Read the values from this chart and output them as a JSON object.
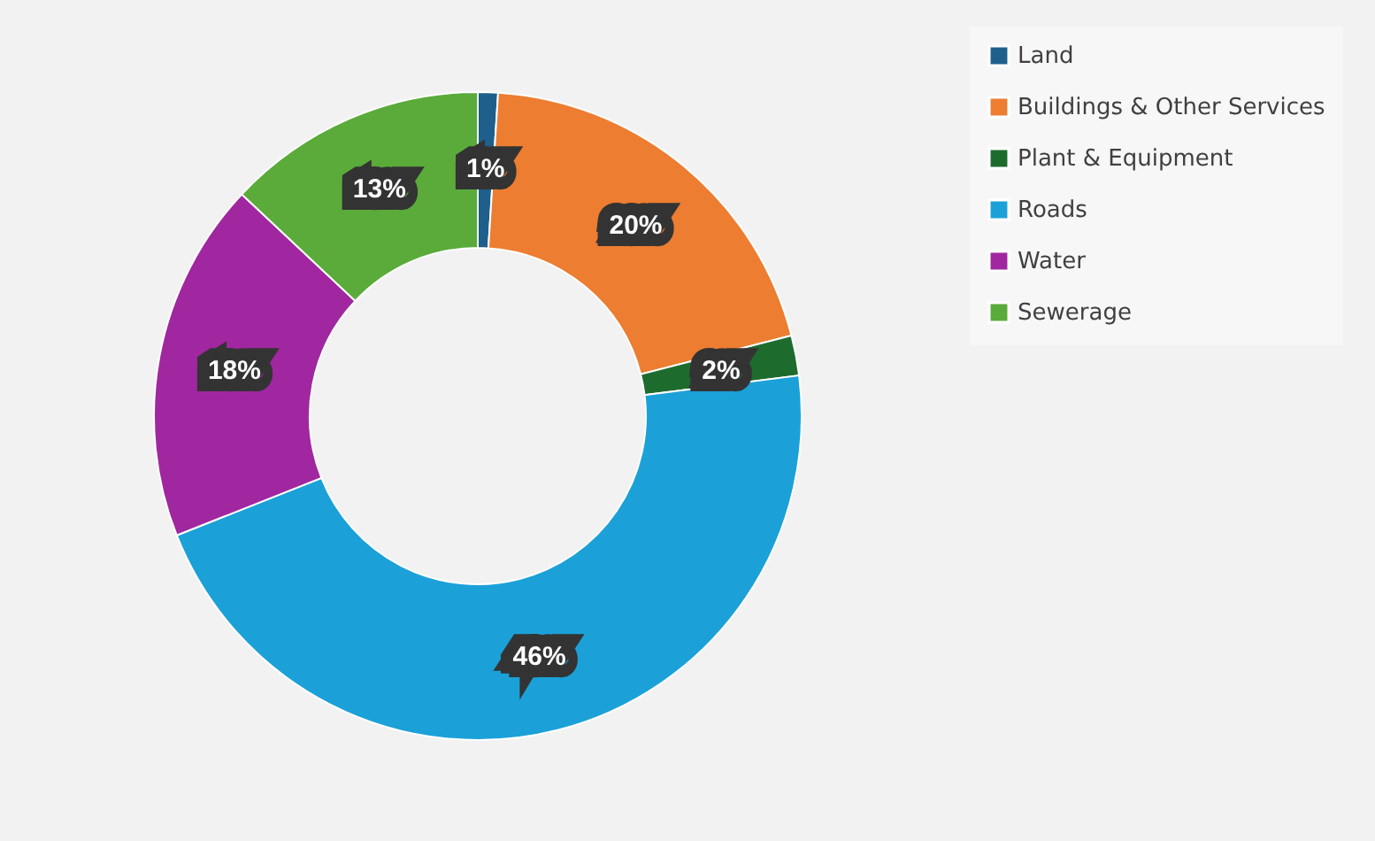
{
  "chart_data": {
    "type": "donut",
    "categories": [
      "Land",
      "Buildings & Other Services",
      "Plant & Equipment",
      "Roads",
      "Water",
      "Sewerage"
    ],
    "values": [
      1,
      20,
      2,
      46,
      18,
      13
    ],
    "colors": [
      "#1f5f8b",
      "#ed7d31",
      "#1e6b2e",
      "#1ba1d8",
      "#a0279f",
      "#5aab3a"
    ],
    "value_labels": [
      "1%",
      "20%",
      "2%",
      "46%",
      "18%",
      "13%"
    ],
    "legend": "right"
  }
}
